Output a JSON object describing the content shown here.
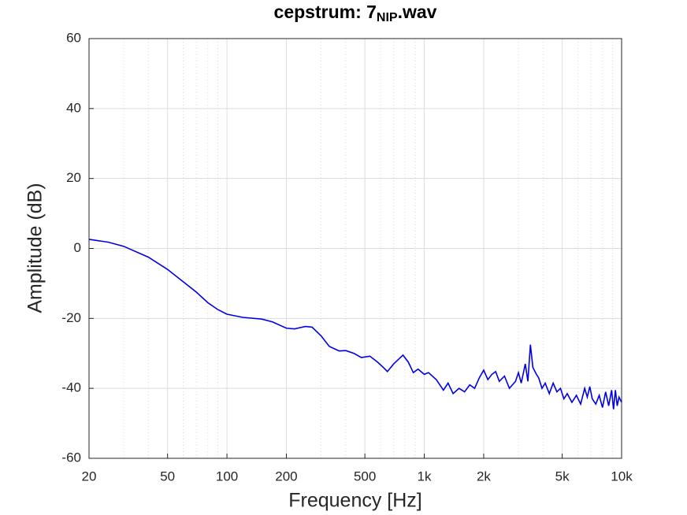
{
  "chart_data": {
    "type": "line",
    "title": [
      "cepstrum: 7",
      "NIP",
      ".wav"
    ],
    "xlabel": "Frequency  [Hz]",
    "ylabel": "Amplitude (dB)",
    "xscale": "log",
    "grid": true,
    "xlim": [
      20,
      10000
    ],
    "ylim": [
      -60,
      60
    ],
    "xticks": [
      20,
      50,
      100,
      200,
      500,
      {
        "value": 1000,
        "label": "1k"
      },
      {
        "value": 2000,
        "label": "2k"
      },
      {
        "value": 5000,
        "label": "5k"
      },
      {
        "value": 10000,
        "label": "10k"
      }
    ],
    "xminorticks": [
      30,
      40,
      60,
      70,
      80,
      90,
      300,
      400,
      600,
      700,
      800,
      900,
      3000,
      4000,
      6000,
      7000,
      8000,
      9000
    ],
    "yticks": [
      60,
      40,
      20,
      0,
      -20,
      -40,
      -60
    ],
    "x": [
      20,
      25,
      30,
      40,
      50,
      60,
      70,
      80,
      90,
      100,
      120,
      150,
      170,
      200,
      220,
      250,
      270,
      300,
      330,
      370,
      400,
      440,
      480,
      530,
      580,
      620,
      650,
      700,
      780,
      830,
      880,
      930,
      1000,
      1050,
      1150,
      1250,
      1320,
      1400,
      1500,
      1600,
      1700,
      1800,
      1900,
      2000,
      2100,
      2200,
      2300,
      2400,
      2550,
      2700,
      2900,
      3000,
      3100,
      3250,
      3350,
      3450,
      3550,
      3700,
      3800,
      3950,
      4100,
      4300,
      4500,
      4700,
      4900,
      5100,
      5300,
      5600,
      5900,
      6200,
      6500,
      6700,
      6900,
      7100,
      7400,
      7700,
      8000,
      8300,
      8600,
      8900,
      9100,
      9300,
      9500,
      9700,
      10000
    ],
    "series": [
      {
        "color": "#0000e6",
        "values": [
          2.6,
          1.8,
          0.6,
          -2.5,
          -6,
          -9.5,
          -12.5,
          -15.5,
          -17.5,
          -18.8,
          -19.7,
          -20.2,
          -21,
          -22.8,
          -23,
          -22.3,
          -22.5,
          -25,
          -28,
          -29.3,
          -29.2,
          -30,
          -31.2,
          -30.8,
          -32.5,
          -34,
          -35.2,
          -33,
          -30.5,
          -32.5,
          -35.5,
          -34.5,
          -36,
          -35.5,
          -37.5,
          -40.5,
          -38.5,
          -41.5,
          -40,
          -41,
          -39,
          -40,
          -37,
          -34.8,
          -37.5,
          -36,
          -35.2,
          -38,
          -36.5,
          -40,
          -38,
          -35.5,
          -38.5,
          -33,
          -38,
          -27.5,
          -34,
          -36,
          -37,
          -40,
          -38.5,
          -41.5,
          -38.5,
          -41,
          -40,
          -43,
          -41.5,
          -44,
          -42,
          -44.5,
          -40,
          -42.5,
          -39.5,
          -43,
          -44.5,
          -42,
          -45.5,
          -41,
          -45,
          -40.5,
          -46,
          -40.5,
          -45,
          -42.5,
          -44
        ]
      }
    ]
  }
}
